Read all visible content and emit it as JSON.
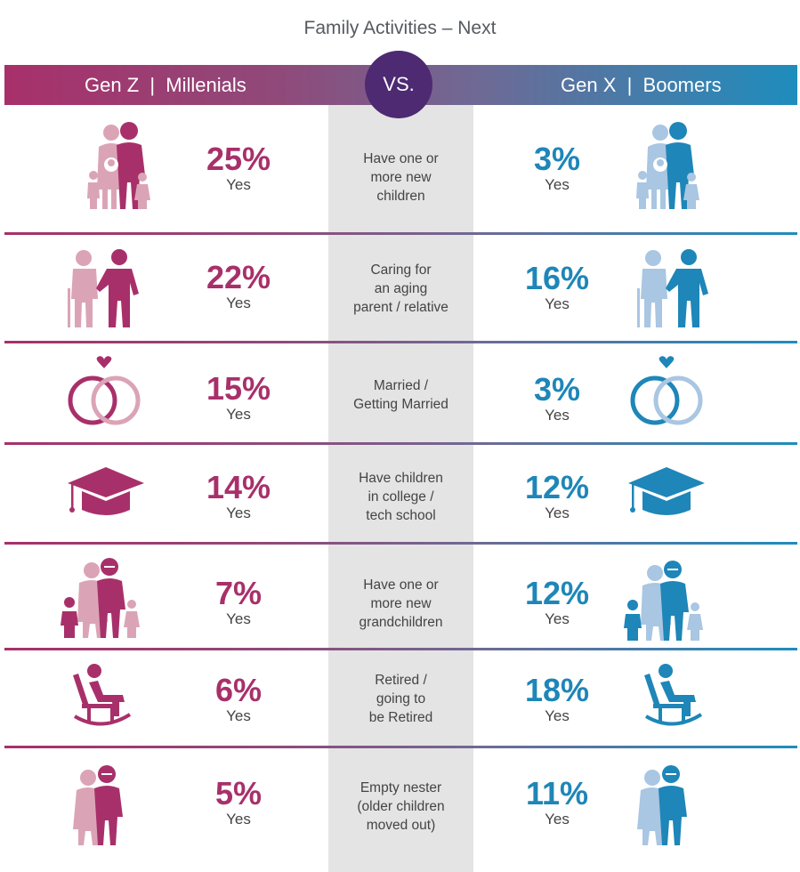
{
  "title": "Family Activities – Next",
  "header": {
    "left": "Gen Z  |  Millenials",
    "vs": "VS.",
    "right": "Gen X  |  Boomers"
  },
  "colors": {
    "left_accent": "#a8306a",
    "left_light": "#dba4b6",
    "right_accent": "#1e86b8",
    "right_light": "#a9c6e2",
    "vs_circle": "#4d2a72"
  },
  "rows": [
    {
      "label": "Have one or\nmore new\nchildren",
      "left_pct": "25%",
      "right_pct": "3%",
      "yes": "Yes",
      "icon": "family-icon"
    },
    {
      "label": "Caring for\nan aging\nparent / relative",
      "left_pct": "22%",
      "right_pct": "16%",
      "yes": "Yes",
      "icon": "elder-care-icon"
    },
    {
      "label": "Married /\nGetting Married",
      "left_pct": "15%",
      "right_pct": "3%",
      "yes": "Yes",
      "icon": "wedding-rings-icon"
    },
    {
      "label": "Have children\nin college /\ntech school",
      "left_pct": "14%",
      "right_pct": "12%",
      "yes": "Yes",
      "icon": "graduation-cap-icon"
    },
    {
      "label": "Have one or\nmore new\ngrandchildren",
      "left_pct": "7%",
      "right_pct": "12%",
      "yes": "Yes",
      "icon": "grandparents-icon"
    },
    {
      "label": "Retired /\ngoing to\nbe Retired",
      "left_pct": "6%",
      "right_pct": "18%",
      "yes": "Yes",
      "icon": "rocking-chair-icon"
    },
    {
      "label": "Empty nester\n(older children\nmoved out)",
      "left_pct": "5%",
      "right_pct": "11%",
      "yes": "Yes",
      "icon": "empty-nest-couple-icon"
    }
  ]
}
